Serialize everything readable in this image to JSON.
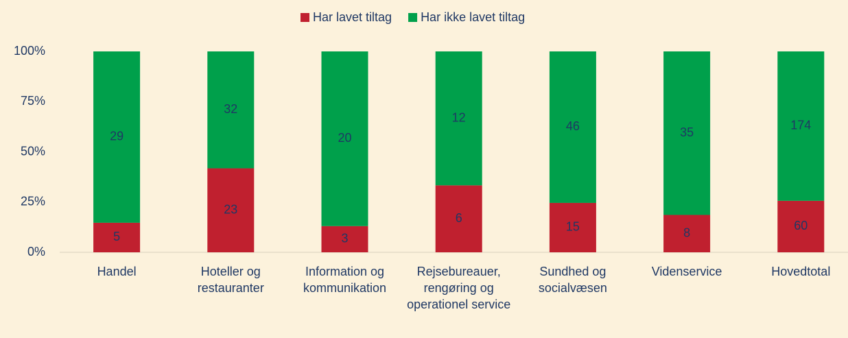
{
  "chart_data": {
    "type": "bar",
    "stack": "percent",
    "categories": [
      "Handel",
      "Hoteller og restauranter",
      "Information og kommunikation",
      "Rejsebureauer, rengøring og operationel service",
      "Sundhed og socialvæsen",
      "Videnservice",
      "Hovedtotal"
    ],
    "series": [
      {
        "name": "Har lavet tiltag",
        "color": "#c0202f",
        "values": [
          5,
          23,
          3,
          6,
          15,
          8,
          60
        ]
      },
      {
        "name": "Har ikke lavet tiltag",
        "color": "#00a04b",
        "values": [
          29,
          32,
          20,
          12,
          46,
          35,
          174
        ]
      }
    ],
    "ylim": [
      0,
      100
    ],
    "yticks": [
      {
        "value": 0,
        "label": "0%"
      },
      {
        "value": 25,
        "label": "25%"
      },
      {
        "value": 50,
        "label": "50%"
      },
      {
        "value": 75,
        "label": "75%"
      },
      {
        "value": 100,
        "label": "100%"
      }
    ],
    "grid": false,
    "legend": "top"
  }
}
